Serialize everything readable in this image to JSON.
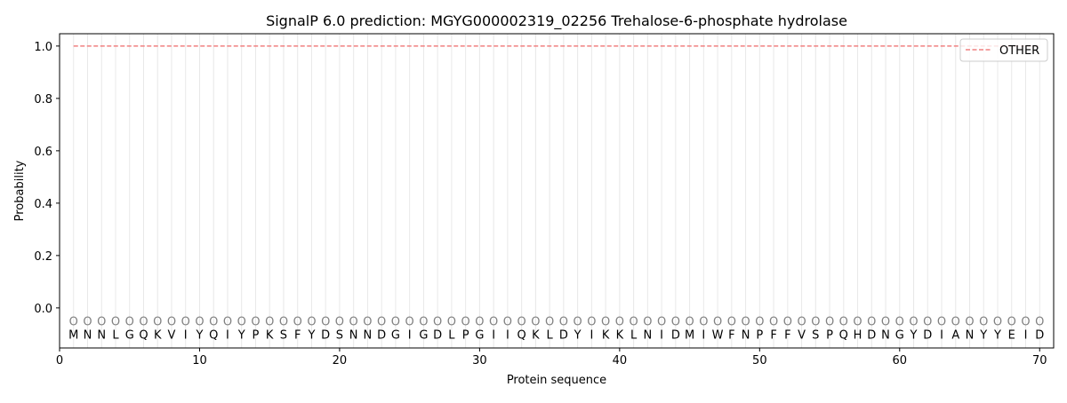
{
  "chart_data": {
    "type": "line",
    "title": "SignalP 6.0 prediction: MGYG000002319_02256 Trehalose-6-phosphate hydrolase",
    "xlabel": "Protein sequence",
    "ylabel": "Probability",
    "xlim": [
      0,
      71
    ],
    "ylim": [
      -0.153,
      1.047
    ],
    "xticks": [
      0,
      10,
      20,
      30,
      40,
      50,
      60,
      70
    ],
    "yticks": [
      "0.0",
      "0.2",
      "0.4",
      "0.6",
      "0.8",
      "1.0"
    ],
    "grid": "vertical lines at each residue",
    "legend": {
      "placement": "top-right",
      "entries": [
        "OTHER"
      ]
    },
    "series": [
      {
        "name": "OTHER",
        "color": "#f08080",
        "style": "dashed",
        "x_range": [
          1,
          70
        ],
        "value": 1.0
      }
    ],
    "sequence": [
      "M",
      "N",
      "N",
      "L",
      "G",
      "Q",
      "K",
      "V",
      "I",
      "Y",
      "Q",
      "I",
      "Y",
      "P",
      "K",
      "S",
      "F",
      "Y",
      "D",
      "S",
      "N",
      "N",
      "D",
      "G",
      "I",
      "G",
      "D",
      "L",
      "P",
      "G",
      "I",
      "I",
      "Q",
      "K",
      "L",
      "D",
      "Y",
      "I",
      "K",
      "K",
      "L",
      "N",
      "I",
      "D",
      "M",
      "I",
      "W",
      "F",
      "N",
      "P",
      "F",
      "F",
      "V",
      "S",
      "P",
      "Q",
      "H",
      "D",
      "N",
      "G",
      "Y",
      "D",
      "I",
      "A",
      "N",
      "Y",
      "Y",
      "E",
      "I",
      "D"
    ],
    "predicted_labels_marker": "O",
    "marker_y": -0.05
  }
}
